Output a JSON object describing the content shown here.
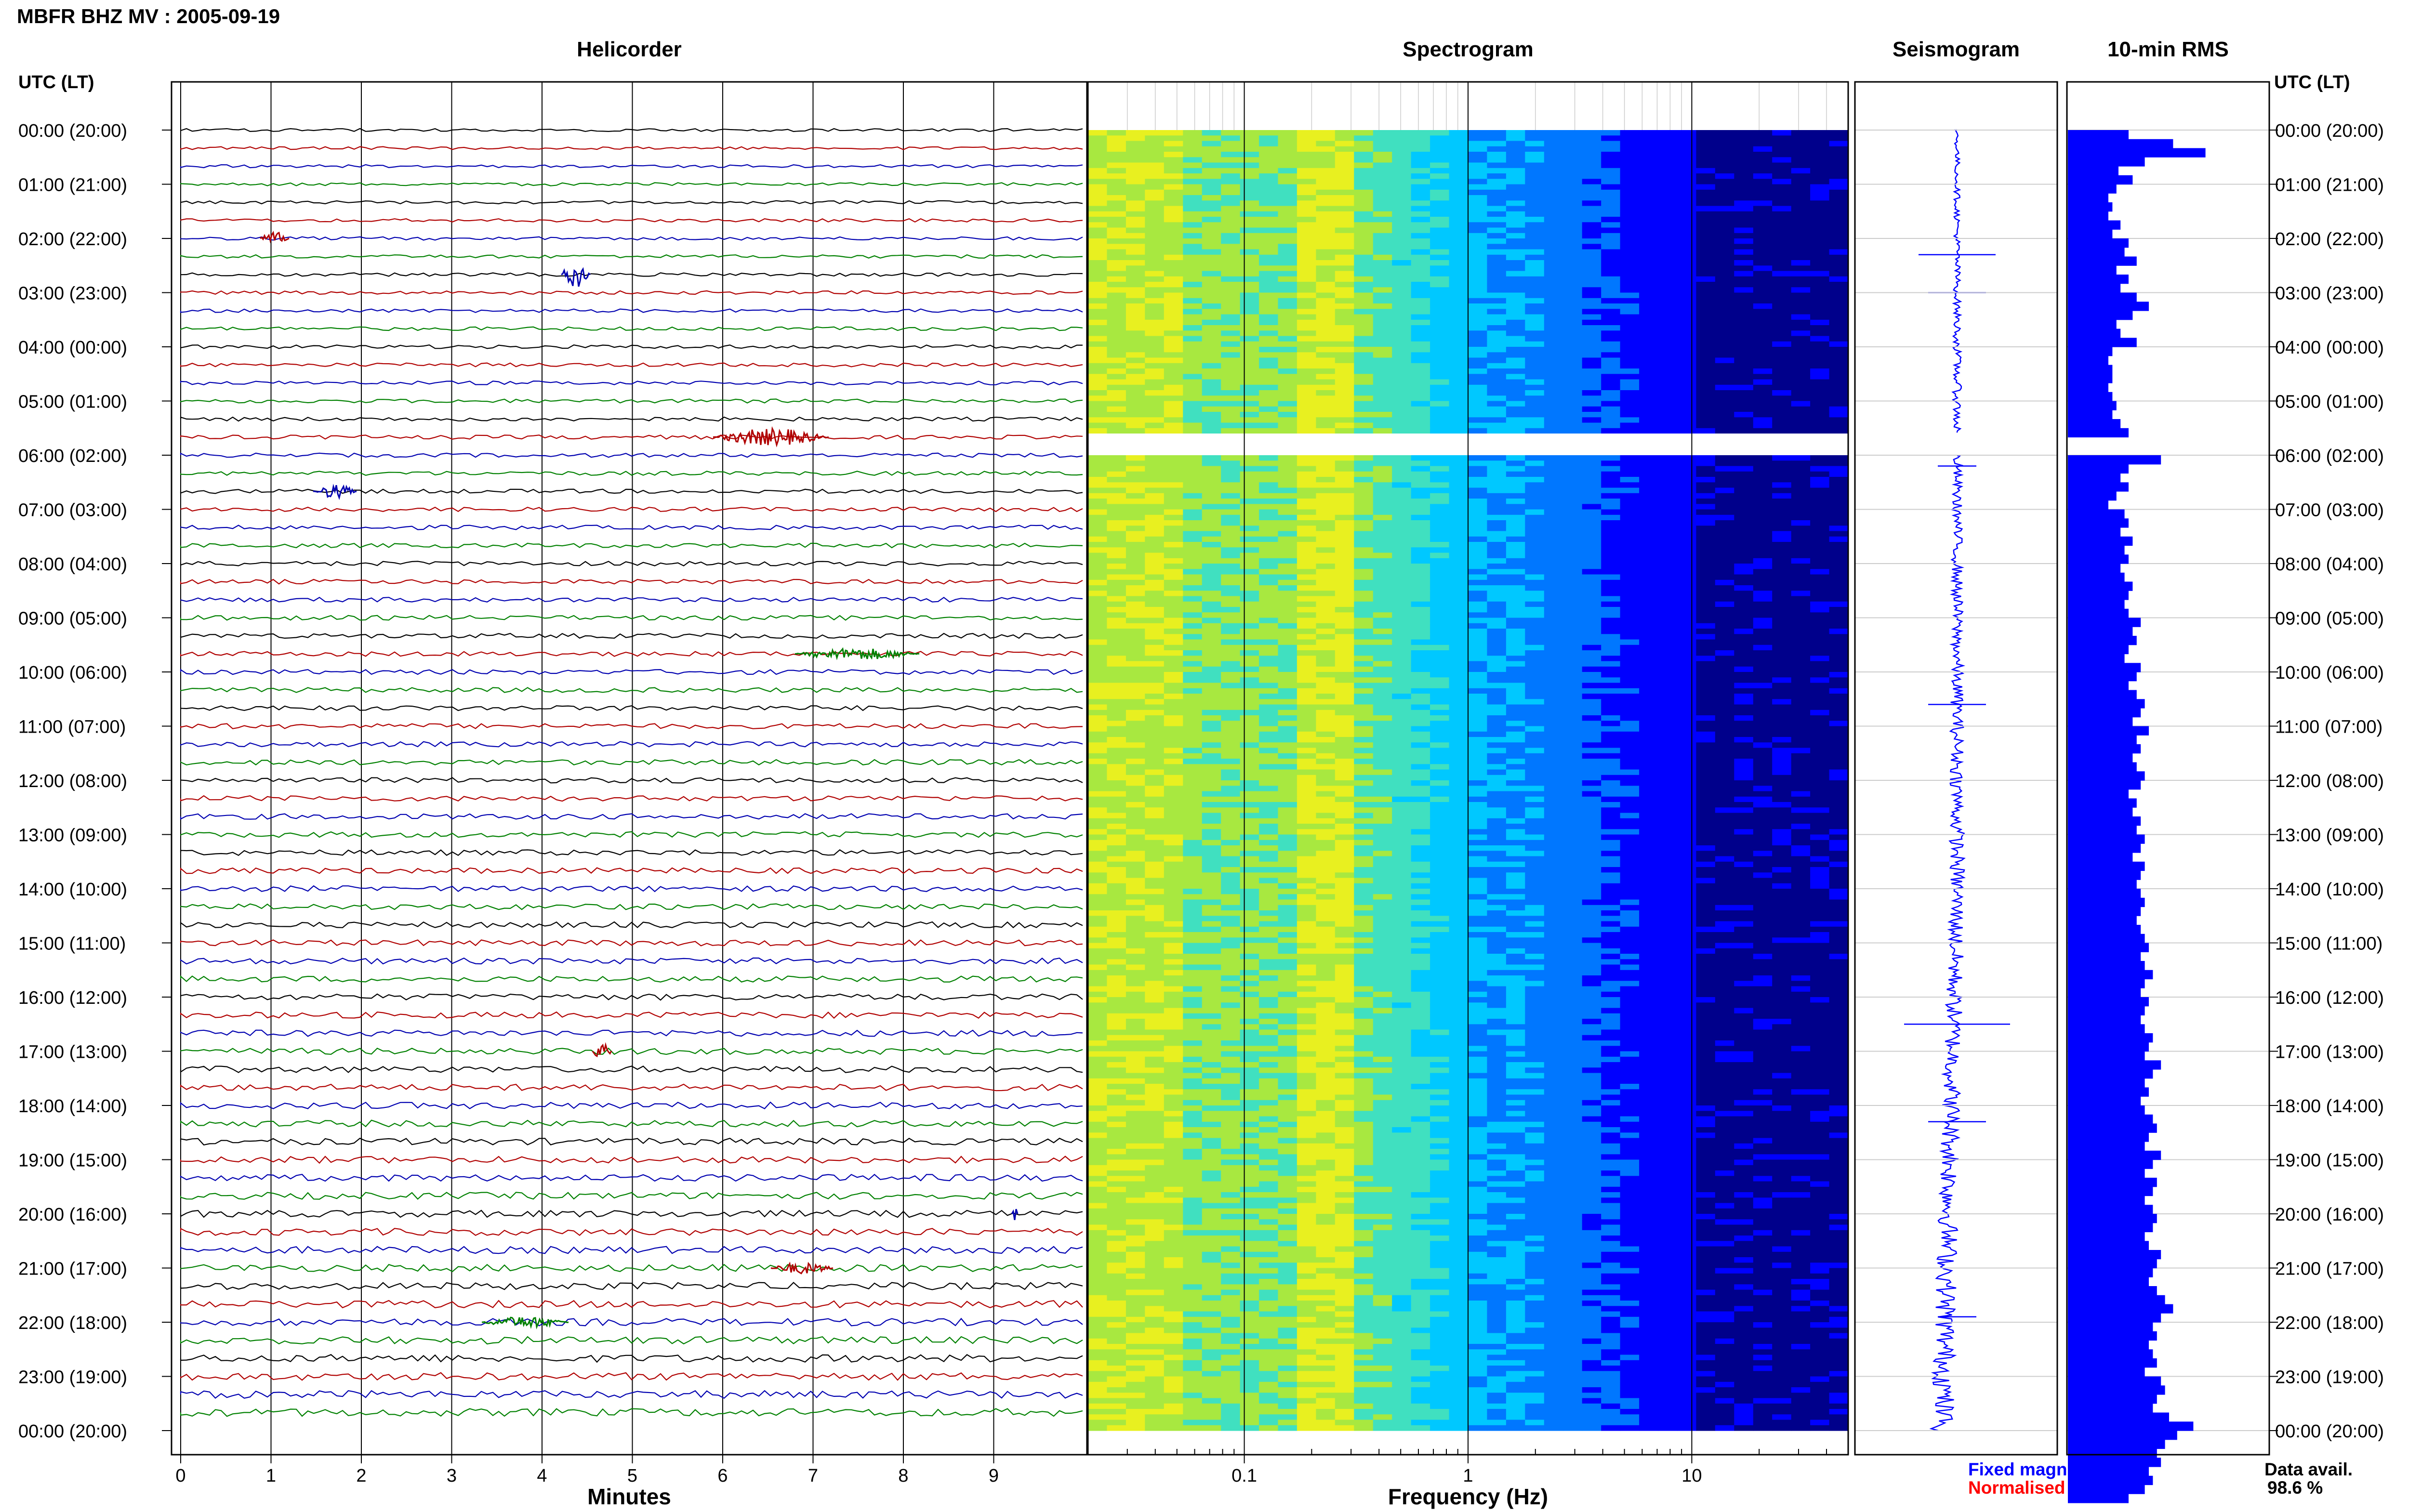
{
  "header": {
    "title": "MBFR BHZ MV : 2005-09-19"
  },
  "panels": {
    "helicorder": "Helicorder",
    "spectrogram": "Spectrogram",
    "seismogram": "Seismogram",
    "rms": "10-min RMS"
  },
  "axes": {
    "time_header_left": "UTC (LT)",
    "time_header_right": "UTC (LT)",
    "minutes_label": "Minutes",
    "frequency_label": "Frequency (Hz)"
  },
  "legend": {
    "fixed": "Fixed magnification",
    "normalised": "Normalised to peak",
    "data_avail_label": "Data avail.",
    "data_avail_value": "98.6 %"
  },
  "colors": {
    "trace_cycle": [
      "#000000",
      "#b00000",
      "#0000b0",
      "#008000"
    ],
    "spectrogram_dark": "#00008b",
    "spectrogram_peak": "#ffff00",
    "rms_bar": "#0000ff",
    "seismogram": "#0000ff",
    "fixed_text": "#0000ff",
    "normalised_text": "#ff0000"
  },
  "chart_data": {
    "type": "helicorder",
    "time_labels": [
      "00:00 (20:00)",
      "01:00 (21:00)",
      "02:00 (22:00)",
      "03:00 (23:00)",
      "04:00 (00:00)",
      "05:00 (01:00)",
      "06:00 (02:00)",
      "07:00 (03:00)",
      "08:00 (04:00)",
      "09:00 (05:00)",
      "10:00 (06:00)",
      "11:00 (07:00)",
      "12:00 (08:00)",
      "13:00 (09:00)",
      "14:00 (10:00)",
      "15:00 (11:00)",
      "16:00 (12:00)",
      "17:00 (13:00)",
      "18:00 (14:00)",
      "19:00 (15:00)",
      "20:00 (16:00)",
      "21:00 (17:00)",
      "22:00 (18:00)",
      "23:00 (19:00)",
      "00:00 (20:00)"
    ],
    "minutes_ticks": [
      "0",
      "1",
      "2",
      "3",
      "4",
      "5",
      "6",
      "7",
      "8",
      "9"
    ],
    "frequency_ticks": [
      "0.1",
      "1",
      "10"
    ],
    "frequency_range_hz": [
      0.02,
      50
    ],
    "frequency_scale": "log",
    "data_gap_hours": [
      5.6,
      6.0
    ],
    "rms_10min": [
      0.3,
      0.52,
      0.68,
      0.38,
      0.25,
      0.32,
      0.24,
      0.2,
      0.22,
      0.2,
      0.26,
      0.22,
      0.3,
      0.28,
      0.34,
      0.24,
      0.3,
      0.26,
      0.34,
      0.4,
      0.32,
      0.24,
      0.26,
      0.34,
      0.22,
      0.2,
      0.22,
      0.22,
      0.2,
      0.22,
      0.24,
      0.22,
      0.26,
      0.3,
      0.28,
      0.22,
      0.46,
      0.3,
      0.26,
      0.3,
      0.24,
      0.2,
      0.28,
      0.3,
      0.26,
      0.32,
      0.28,
      0.3,
      0.26,
      0.28,
      0.32,
      0.3,
      0.28,
      0.3,
      0.36,
      0.32,
      0.34,
      0.3,
      0.28,
      0.36,
      0.34,
      0.3,
      0.34,
      0.38,
      0.36,
      0.32,
      0.4,
      0.34,
      0.36,
      0.32,
      0.34,
      0.38,
      0.36,
      0.3,
      0.34,
      0.32,
      0.36,
      0.34,
      0.38,
      0.36,
      0.32,
      0.38,
      0.36,
      0.34,
      0.36,
      0.38,
      0.36,
      0.34,
      0.36,
      0.38,
      0.4,
      0.36,
      0.38,
      0.42,
      0.38,
      0.36,
      0.4,
      0.38,
      0.36,
      0.38,
      0.42,
      0.4,
      0.38,
      0.46,
      0.42,
      0.38,
      0.4,
      0.36,
      0.38,
      0.42,
      0.44,
      0.4,
      0.38,
      0.46,
      0.42,
      0.38,
      0.44,
      0.42,
      0.38,
      0.42,
      0.44,
      0.42,
      0.38,
      0.4,
      0.46,
      0.44,
      0.42,
      0.4,
      0.44,
      0.48,
      0.52,
      0.46,
      0.42,
      0.44,
      0.4,
      0.42,
      0.44,
      0.38,
      0.46,
      0.48,
      0.44,
      0.42,
      0.5,
      0.62,
      0.54,
      0.48,
      0.44,
      0.46,
      0.4,
      0.42,
      0.38,
      0.3
    ]
  }
}
